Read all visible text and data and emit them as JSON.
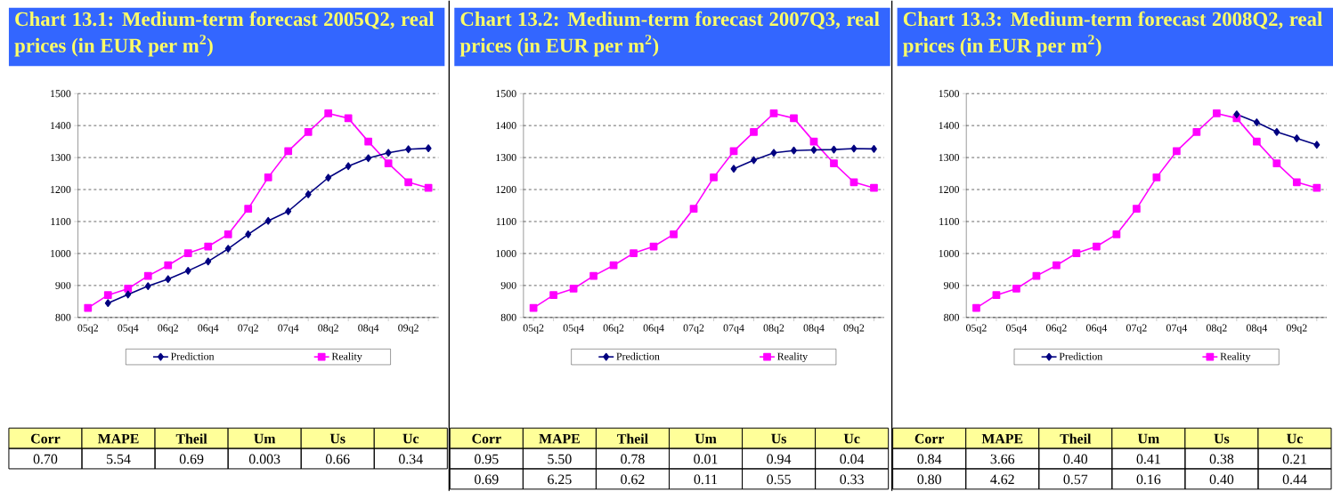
{
  "chart_data": [
    {
      "type": "line",
      "title": "Chart 13.1: Medium-term forecast 2005Q2, real prices (in EUR per m$^{2}$)",
      "categories": [
        "05q2",
        null,
        "05q4",
        null,
        "06q2",
        null,
        "06q4",
        null,
        "07q2",
        null,
        "07q4",
        null,
        "08q2",
        null,
        "08q4",
        null,
        "09q2",
        null
      ],
      "series": [
        {
          "name": "Prediction",
          "color": "#000080",
          "marker": "diamond",
          "values": [
            null,
            845,
            872,
            898,
            920,
            946,
            975,
            1015,
            1060,
            1102,
            1132,
            1185,
            1237,
            1273,
            1298,
            1315,
            1326,
            1329
          ]
        },
        {
          "name": "Reality",
          "color": "#ff00ff",
          "marker": "square",
          "values": [
            830,
            870,
            890,
            930,
            963,
            1001,
            1022,
            1060,
            1140,
            1238,
            1320,
            1380,
            1438,
            1423,
            1350,
            1282,
            1223,
            1205
          ]
        }
      ],
      "ylim": [
        800,
        1500
      ],
      "yticks": [
        800,
        900,
        1000,
        1100,
        1200,
        1300,
        1400,
        1500
      ],
      "grid": "y",
      "legend": "bottom",
      "line_style": "solid",
      "annotations": [
        "Corr",
        "MAPE",
        "Theil",
        "Um",
        "Us",
        "Uc",
        "0.70",
        "5.54",
        "0.69",
        "0.003",
        "0.66",
        "0.34"
      ]
    },
    {
      "type": "line",
      "title": "Chart 13.2: Medium-term forecast 2007Q3, real prices (in EUR per m$^{2}$)",
      "categories": [
        "05q2",
        null,
        "05q4",
        null,
        "06q2",
        null,
        "06q4",
        null,
        "07q2",
        null,
        "07q4",
        null,
        "08q2",
        null,
        "08q4",
        null,
        "09q2",
        null
      ],
      "series": [
        {
          "name": "Prediction",
          "color": "#000080",
          "marker": "diamond",
          "values": [
            null,
            null,
            null,
            null,
            null,
            null,
            null,
            null,
            null,
            null,
            1265,
            1292,
            1315,
            1322,
            1324,
            1325,
            1328,
            1327
          ]
        },
        {
          "name": "Reality",
          "color": "#ff00ff",
          "marker": "square",
          "values": [
            830,
            870,
            890,
            930,
            963,
            1001,
            1022,
            1060,
            1140,
            1238,
            1320,
            1380,
            1438,
            1423,
            1350,
            1282,
            1223,
            1205
          ]
        }
      ],
      "ylim": [
        800,
        1500
      ],
      "yticks": [
        800,
        900,
        1000,
        1100,
        1200,
        1300,
        1400,
        1500
      ],
      "grid": "y",
      "legend": "bottom",
      "line_style": "solid",
      "annotations": [
        "Corr",
        "MAPE",
        "Theil",
        "Um",
        "Us",
        "Uc",
        "0.95",
        "5.50",
        "0.78",
        "0.01",
        "0.94",
        "0.04",
        "0.69",
        "6.25",
        "0.62",
        "0.11",
        "0.55",
        "0.33"
      ]
    },
    {
      "type": "line",
      "title": "Chart 13.3: Medium-term forecast 2008Q2, real prices (in EUR per m$^{2}$)",
      "categories": [
        "05q2",
        null,
        "05q4",
        null,
        "06q2",
        null,
        "06q4",
        null,
        "07q2",
        null,
        "07q4",
        null,
        "08q2",
        null,
        "08q4",
        null,
        "09q2",
        null
      ],
      "series": [
        {
          "name": "Prediction",
          "color": "#000080",
          "marker": "diamond",
          "values": [
            null,
            null,
            null,
            null,
            null,
            null,
            null,
            null,
            null,
            null,
            null,
            null,
            null,
            1435,
            1410,
            1380,
            1360,
            1340
          ]
        },
        {
          "name": "Reality",
          "color": "#ff00ff",
          "marker": "square",
          "values": [
            830,
            870,
            890,
            930,
            963,
            1001,
            1022,
            1060,
            1140,
            1238,
            1320,
            1380,
            1438,
            1423,
            1350,
            1282,
            1223,
            1205
          ]
        }
      ],
      "ylim": [
        800,
        1500
      ],
      "yticks": [
        800,
        900,
        1000,
        1100,
        1200,
        1300,
        1400,
        1500
      ],
      "grid": "y",
      "legend": "bottom",
      "line_style": "solid",
      "annotations": [
        "Corr",
        "MAPE",
        "Theil",
        "Um",
        "Us",
        "Uc",
        "0.84",
        "3.66",
        "0.40",
        "0.41",
        "0.38",
        "0.21",
        "0.80",
        "4.62",
        "0.57",
        "0.16",
        "0.40",
        "0.44"
      ]
    }
  ]
}
